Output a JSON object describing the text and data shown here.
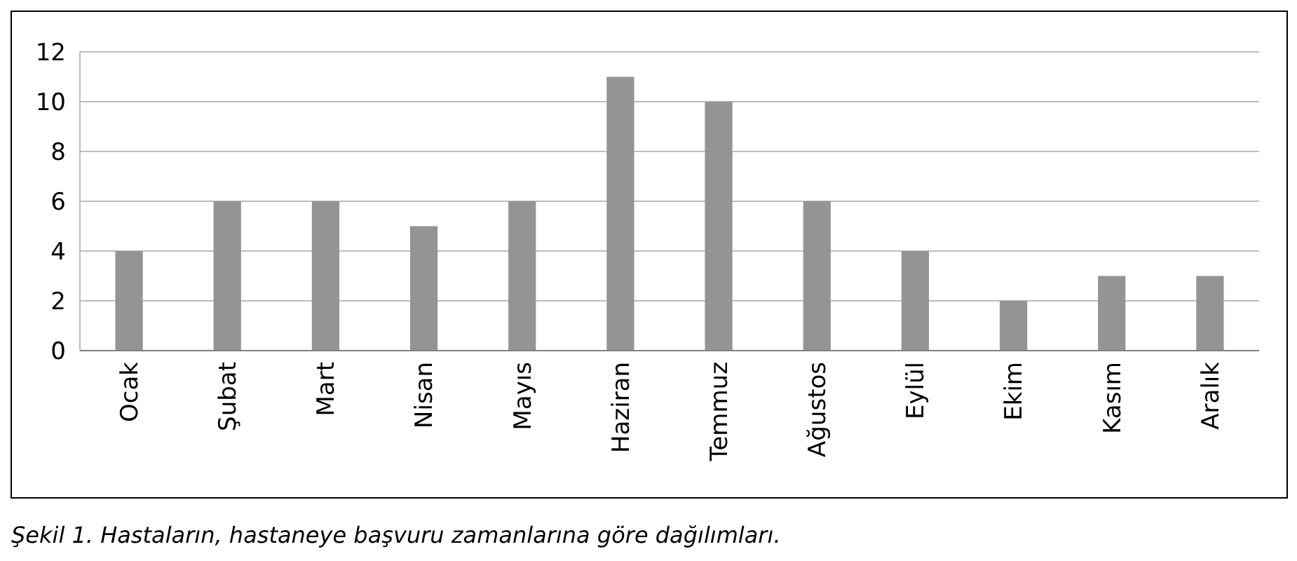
{
  "chart_data": {
    "type": "bar",
    "categories": [
      "Ocak",
      "Şubat",
      "Mart",
      "Nisan",
      "Mayıs",
      "Haziran",
      "Temmuz",
      "Ağustos",
      "Eylül",
      "Ekim",
      "Kasım",
      "Aralık"
    ],
    "values": [
      4,
      6,
      6,
      5,
      6,
      11,
      10,
      6,
      4,
      2,
      3,
      3
    ],
    "color": "#949494",
    "ylim": [
      0,
      12
    ],
    "yticks": [
      0,
      2,
      4,
      6,
      8,
      10,
      12
    ],
    "grid": "y",
    "annotations": [
      "Şekil 1. Hastaların, hastaneye başvuru zamanlarına göre dağılımları."
    ]
  }
}
